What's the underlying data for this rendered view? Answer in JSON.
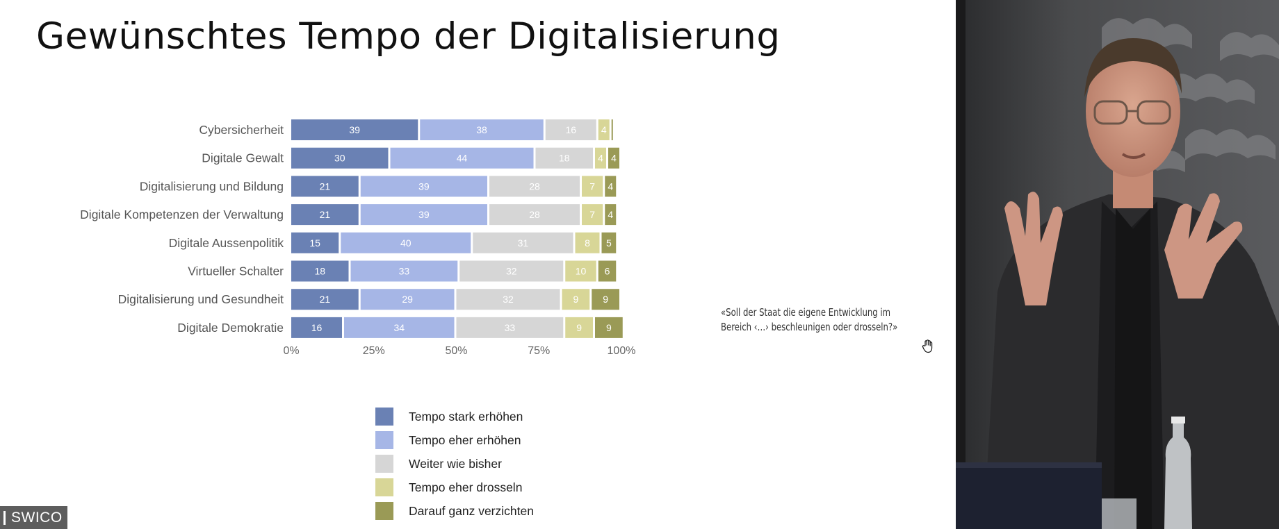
{
  "slide": {
    "title": "Gewünschtes Tempo der Digitalisierung",
    "note_line1": "«Soll der Staat die eigene Entwicklung im",
    "note_line2": "Bereich ‹…› beschleunigen oder drosseln?»"
  },
  "logo": {
    "text": "SWICO"
  },
  "cursor": {
    "icon": "hand-cursor-icon"
  },
  "chart_data": {
    "type": "bar",
    "orientation": "horizontal",
    "stacked": true,
    "categories": [
      "Cybersicherheit",
      "Digitale Gewalt",
      "Digitalisierung und Bildung",
      "Digitale Kompetenzen der Verwaltung",
      "Digitale Aussenpolitik",
      "Virtueller Schalter",
      "Digitalisierung und Gesundheit",
      "Digitale Demokratie"
    ],
    "series": [
      {
        "name": "Tempo stark erhöhen",
        "color": "#6a81b4",
        "values": [
          39,
          30,
          21,
          21,
          15,
          18,
          21,
          16
        ]
      },
      {
        "name": "Tempo eher erhöhen",
        "color": "#a6b6e6",
        "values": [
          38,
          44,
          39,
          39,
          40,
          33,
          29,
          34
        ]
      },
      {
        "name": "Weiter wie bisher",
        "color": "#d6d6d6",
        "values": [
          16,
          18,
          28,
          28,
          31,
          32,
          32,
          33
        ]
      },
      {
        "name": "Tempo eher drosseln",
        "color": "#d8d697",
        "values": [
          4,
          4,
          7,
          7,
          8,
          10,
          9,
          9
        ]
      },
      {
        "name": "Darauf ganz verzichten",
        "color": "#9a9a56",
        "values": [
          1,
          4,
          4,
          4,
          5,
          6,
          9,
          9
        ]
      }
    ],
    "data_labels": [
      [
        "39",
        "38",
        "16",
        "4",
        ""
      ],
      [
        "30",
        "44",
        "18",
        "4",
        "4"
      ],
      [
        "21",
        "39",
        "28",
        "7",
        "4"
      ],
      [
        "21",
        "39",
        "28",
        "7",
        "4"
      ],
      [
        "15",
        "40",
        "31",
        "8",
        "5"
      ],
      [
        "18",
        "33",
        "32",
        "10",
        "6"
      ],
      [
        "21",
        "29",
        "32",
        "9",
        "9"
      ],
      [
        "16",
        "34",
        "33",
        "9",
        "9"
      ]
    ],
    "xlim": [
      0,
      100
    ],
    "xticks": [
      "0%",
      "25%",
      "50%",
      "75%",
      "100%"
    ],
    "legend_position": "bottom",
    "grid": false
  }
}
